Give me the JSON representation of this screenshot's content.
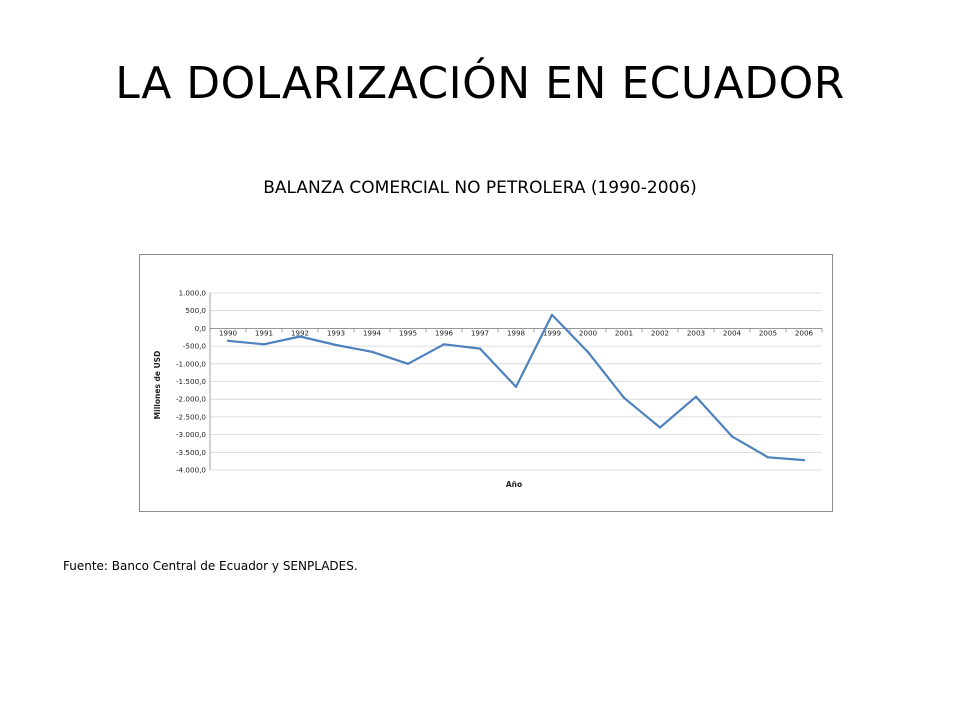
{
  "slide": {
    "title": "LA DOLARIZACIÓN EN ECUADOR",
    "source": "Fuente: Banco Central de Ecuador y SENPLADES."
  },
  "chart_data": {
    "type": "line",
    "title": "BALANZA COMERCIAL NO PETROLERA (1990-2006)",
    "xlabel": "Año",
    "ylabel": "Millones de USD",
    "x": [
      "1990",
      "1991",
      "1992",
      "1993",
      "1994",
      "1995",
      "1996",
      "1997",
      "1998",
      "1999",
      "2000",
      "2001",
      "2002",
      "2003",
      "2004",
      "2005",
      "2006"
    ],
    "series": [
      {
        "name": "",
        "color": "#4f81bd",
        "values": [
          -350,
          -450,
          -230,
          -470,
          -660,
          -1000,
          -450,
          -570,
          -1650,
          380,
          -670,
          -1960,
          -2800,
          -1930,
          -3050,
          -3640,
          -3720
        ]
      }
    ],
    "y_ticks": [
      1000,
      500,
      0,
      -500,
      -1000,
      -1500,
      -2000,
      -2500,
      -3000,
      -3500,
      -4000
    ],
    "y_tick_labels": [
      "1.000,0",
      "500,0",
      "0,0",
      "-500,0",
      "-1.000,0",
      "-1.500,0",
      "-2.000,0",
      "-2.500,0",
      "-3.000,0",
      "-3.500,0",
      "-4.000,0"
    ],
    "ylim": [
      -4000,
      1000
    ],
    "grid": true,
    "x_tick_position": "along zero line",
    "legend": "none"
  }
}
